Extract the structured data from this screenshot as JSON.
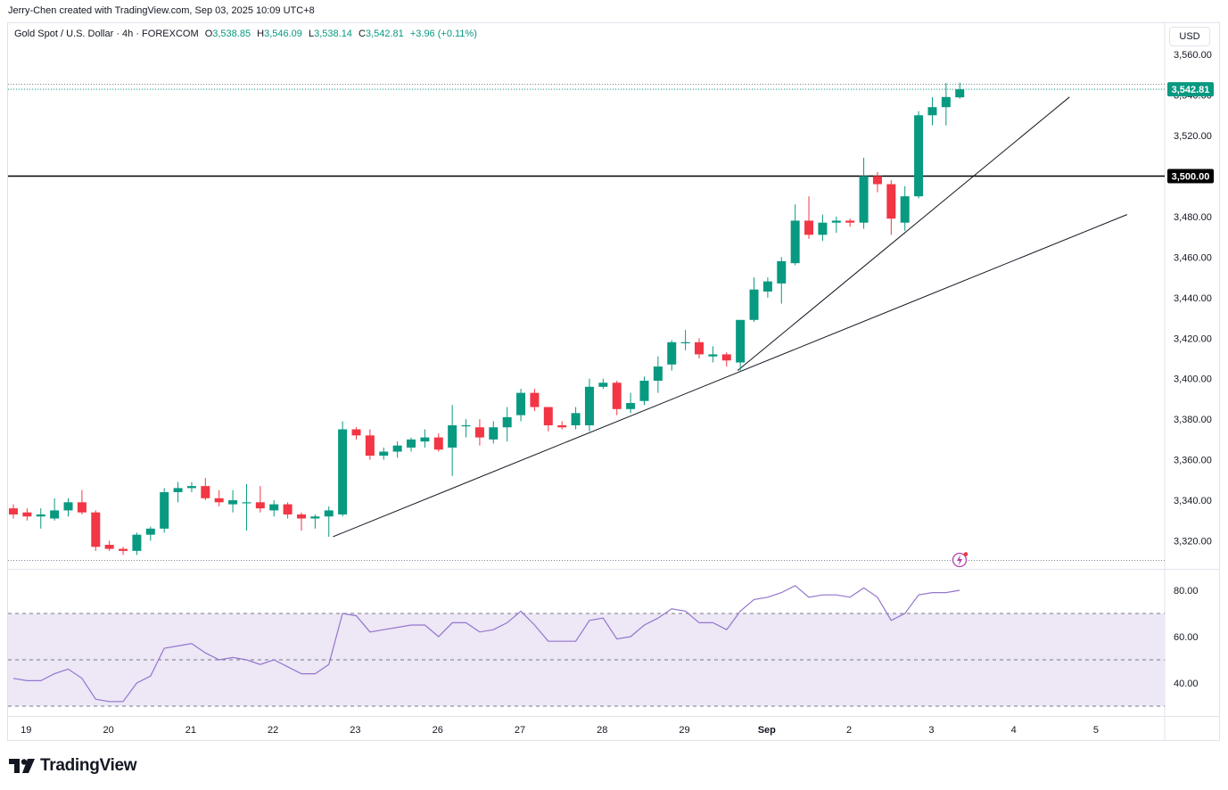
{
  "credit": "Jerry-Chen created with TradingView.com, Sep 03, 2025 10:09 UTC+8",
  "legend": {
    "symbol": "Gold Spot / U.S. Dollar · 4h · FOREXCOM",
    "o_label": "O",
    "o": "3,538.85",
    "h_label": "H",
    "h": "3,546.09",
    "l_label": "L",
    "l": "3,538.14",
    "c_label": "C",
    "c": "3,542.81",
    "change": "+3.96 (+0.11%)"
  },
  "currency_button": "USD",
  "brand": "TradingView",
  "colors": {
    "up": "#089981",
    "down": "#f23645",
    "rsi": "#9575cd",
    "rsi_band": "#ede7f6"
  },
  "chart_data": [
    {
      "type": "candlestick",
      "timeframe": "4h",
      "x_tick_labels": [
        "19",
        "20",
        "21",
        "22",
        "23",
        "26",
        "27",
        "28",
        "29",
        "Sep",
        "2",
        "3",
        "4",
        "5"
      ],
      "y_tick_labels": [
        "3,560.00",
        "3,540.00",
        "3,520.00",
        "3,500.00",
        "3,480.00",
        "3,460.00",
        "3,440.00",
        "3,420.00",
        "3,400.00",
        "3,380.00",
        "3,360.00",
        "3,340.00",
        "3,320.00"
      ],
      "ylim": [
        3312,
        3570
      ],
      "last_price_label": "3,542.81",
      "horizontal_level_label": "3,500.00",
      "horizontal_level": 3500,
      "candles": [
        {
          "o": 3336,
          "h": 3338,
          "l": 3331,
          "c": 3333
        },
        {
          "o": 3334,
          "h": 3336,
          "l": 3330,
          "c": 3332
        },
        {
          "o": 3332,
          "h": 3336,
          "l": 3326,
          "c": 3333
        },
        {
          "o": 3331,
          "h": 3341,
          "l": 3330,
          "c": 3335
        },
        {
          "o": 3335,
          "h": 3341,
          "l": 3332,
          "c": 3339
        },
        {
          "o": 3339,
          "h": 3345,
          "l": 3333,
          "c": 3334
        },
        {
          "o": 3334,
          "h": 3335,
          "l": 3315,
          "c": 3317
        },
        {
          "o": 3318,
          "h": 3320,
          "l": 3315,
          "c": 3316
        },
        {
          "o": 3316,
          "h": 3317,
          "l": 3313,
          "c": 3315
        },
        {
          "o": 3315,
          "h": 3324,
          "l": 3313,
          "c": 3323
        },
        {
          "o": 3323,
          "h": 3327,
          "l": 3320,
          "c": 3326
        },
        {
          "o": 3326,
          "h": 3346,
          "l": 3324,
          "c": 3344
        },
        {
          "o": 3344,
          "h": 3349,
          "l": 3339,
          "c": 3346
        },
        {
          "o": 3346,
          "h": 3349,
          "l": 3344,
          "c": 3347
        },
        {
          "o": 3347,
          "h": 3351,
          "l": 3340,
          "c": 3341
        },
        {
          "o": 3341,
          "h": 3345,
          "l": 3337,
          "c": 3339
        },
        {
          "o": 3338,
          "h": 3345,
          "l": 3334,
          "c": 3340
        },
        {
          "o": 3339,
          "h": 3348,
          "l": 3325,
          "c": 3339
        },
        {
          "o": 3339,
          "h": 3347,
          "l": 3334,
          "c": 3336
        },
        {
          "o": 3335,
          "h": 3340,
          "l": 3332,
          "c": 3338
        },
        {
          "o": 3338,
          "h": 3339,
          "l": 3331,
          "c": 3333
        },
        {
          "o": 3333,
          "h": 3334,
          "l": 3325,
          "c": 3331
        },
        {
          "o": 3331,
          "h": 3333,
          "l": 3326,
          "c": 3332
        },
        {
          "o": 3332,
          "h": 3337,
          "l": 3322,
          "c": 3335
        },
        {
          "o": 3333,
          "h": 3379,
          "l": 3332,
          "c": 3375
        },
        {
          "o": 3375,
          "h": 3376,
          "l": 3370,
          "c": 3372
        },
        {
          "o": 3372,
          "h": 3375,
          "l": 3360,
          "c": 3362
        },
        {
          "o": 3362,
          "h": 3366,
          "l": 3360,
          "c": 3364
        },
        {
          "o": 3364,
          "h": 3369,
          "l": 3361,
          "c": 3367
        },
        {
          "o": 3366,
          "h": 3371,
          "l": 3364,
          "c": 3370
        },
        {
          "o": 3369,
          "h": 3375,
          "l": 3366,
          "c": 3371
        },
        {
          "o": 3371,
          "h": 3373,
          "l": 3364,
          "c": 3365
        },
        {
          "o": 3366,
          "h": 3387,
          "l": 3352,
          "c": 3377
        },
        {
          "o": 3377,
          "h": 3380,
          "l": 3371,
          "c": 3377
        },
        {
          "o": 3376,
          "h": 3380,
          "l": 3367,
          "c": 3371
        },
        {
          "o": 3370,
          "h": 3379,
          "l": 3368,
          "c": 3376
        },
        {
          "o": 3376,
          "h": 3386,
          "l": 3369,
          "c": 3381
        },
        {
          "o": 3382,
          "h": 3395,
          "l": 3379,
          "c": 3393
        },
        {
          "o": 3393,
          "h": 3395,
          "l": 3384,
          "c": 3386
        },
        {
          "o": 3386,
          "h": 3386,
          "l": 3374,
          "c": 3377
        },
        {
          "o": 3377,
          "h": 3379,
          "l": 3375,
          "c": 3376
        },
        {
          "o": 3377,
          "h": 3386,
          "l": 3375,
          "c": 3383
        },
        {
          "o": 3377,
          "h": 3400,
          "l": 3374,
          "c": 3396
        },
        {
          "o": 3396,
          "h": 3400,
          "l": 3395,
          "c": 3398
        },
        {
          "o": 3398,
          "h": 3399,
          "l": 3382,
          "c": 3385
        },
        {
          "o": 3385,
          "h": 3393,
          "l": 3383,
          "c": 3388
        },
        {
          "o": 3389,
          "h": 3401,
          "l": 3387,
          "c": 3399
        },
        {
          "o": 3399,
          "h": 3411,
          "l": 3393,
          "c": 3406
        },
        {
          "o": 3407,
          "h": 3419,
          "l": 3404,
          "c": 3418
        },
        {
          "o": 3418,
          "h": 3424,
          "l": 3414,
          "c": 3418
        },
        {
          "o": 3418,
          "h": 3420,
          "l": 3410,
          "c": 3412
        },
        {
          "o": 3411,
          "h": 3416,
          "l": 3408,
          "c": 3412
        },
        {
          "o": 3412,
          "h": 3413,
          "l": 3406,
          "c": 3409
        },
        {
          "o": 3408,
          "h": 3429,
          "l": 3404,
          "c": 3429
        },
        {
          "o": 3429,
          "h": 3450,
          "l": 3428,
          "c": 3444
        },
        {
          "o": 3443,
          "h": 3450,
          "l": 3440,
          "c": 3448
        },
        {
          "o": 3447,
          "h": 3460,
          "l": 3437,
          "c": 3458
        },
        {
          "o": 3457,
          "h": 3486,
          "l": 3456,
          "c": 3478
        },
        {
          "o": 3478,
          "h": 3490,
          "l": 3469,
          "c": 3471
        },
        {
          "o": 3471,
          "h": 3481,
          "l": 3468,
          "c": 3477
        },
        {
          "o": 3477,
          "h": 3480,
          "l": 3472,
          "c": 3478
        },
        {
          "o": 3478,
          "h": 3479,
          "l": 3475,
          "c": 3477
        },
        {
          "o": 3477,
          "h": 3509,
          "l": 3474,
          "c": 3500
        },
        {
          "o": 3500,
          "h": 3502,
          "l": 3492,
          "c": 3496
        },
        {
          "o": 3496,
          "h": 3498,
          "l": 3471,
          "c": 3479
        },
        {
          "o": 3477,
          "h": 3495,
          "l": 3473,
          "c": 3490
        },
        {
          "o": 3490,
          "h": 3532,
          "l": 3489,
          "c": 3530
        },
        {
          "o": 3530,
          "h": 3539,
          "l": 3525,
          "c": 3534
        },
        {
          "o": 3534,
          "h": 3546,
          "l": 3525,
          "c": 3539
        },
        {
          "o": 3538.85,
          "h": 3546.09,
          "l": 3538.14,
          "c": 3542.81
        }
      ]
    },
    {
      "type": "line",
      "indicator": "RSI",
      "y_tick_labels": [
        "80.00",
        "60.00",
        "40.00"
      ],
      "ylim": [
        26,
        85
      ],
      "bands": [
        70,
        50,
        30
      ],
      "values": [
        42,
        41,
        41,
        44,
        46,
        42,
        33,
        32,
        32,
        40,
        43,
        55,
        56,
        57,
        53,
        50,
        51,
        50,
        48,
        50,
        47,
        44,
        44,
        48,
        70,
        69,
        62,
        63,
        64,
        65,
        65,
        60,
        66,
        66,
        62,
        63,
        66,
        71,
        65,
        58,
        58,
        58,
        67,
        68,
        59,
        60,
        65,
        68,
        72,
        71,
        66,
        66,
        63,
        71,
        76,
        77,
        79,
        82,
        77,
        78,
        78,
        77,
        81,
        77,
        67,
        70,
        78,
        79,
        79,
        80
      ]
    }
  ]
}
